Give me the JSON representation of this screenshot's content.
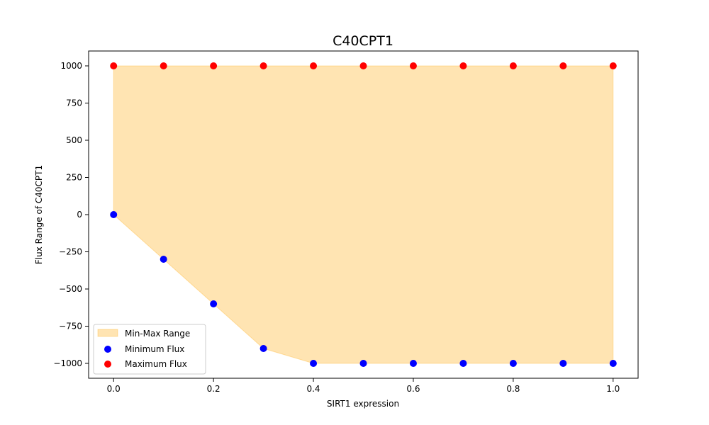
{
  "chart_data": {
    "type": "scatter",
    "title": "C40CPT1",
    "xlabel": "SIRT1 expression",
    "ylabel": "Flux Range of C40CPT1",
    "xlim": [
      -0.05,
      1.05
    ],
    "ylim": [
      -1100,
      1100
    ],
    "x": [
      0.0,
      0.1,
      0.2,
      0.3,
      0.4,
      0.5,
      0.6,
      0.7,
      0.8,
      0.9,
      1.0
    ],
    "series": [
      {
        "name": "Minimum Flux",
        "color": "#0000ff",
        "marker": "circle",
        "values": [
          0,
          -300,
          -600,
          -900,
          -1000,
          -1000,
          -1000,
          -1000,
          -1000,
          -1000,
          -1000
        ]
      },
      {
        "name": "Maximum Flux",
        "color": "#ff0000",
        "marker": "circle",
        "values": [
          1000,
          1000,
          1000,
          1000,
          1000,
          1000,
          1000,
          1000,
          1000,
          1000,
          1000
        ]
      }
    ],
    "fill_between": {
      "name": "Min-Max Range",
      "color": "#ffa500",
      "alpha": 0.3
    },
    "x_ticks": [
      {
        "value": 0.0,
        "label": "0.0"
      },
      {
        "value": 0.2,
        "label": "0.2"
      },
      {
        "value": 0.4,
        "label": "0.4"
      },
      {
        "value": 0.6,
        "label": "0.6"
      },
      {
        "value": 0.8,
        "label": "0.8"
      },
      {
        "value": 1.0,
        "label": "1.0"
      }
    ],
    "y_ticks": [
      {
        "value": 1000,
        "label": "1000"
      },
      {
        "value": 750,
        "label": "750"
      },
      {
        "value": 500,
        "label": "500"
      },
      {
        "value": 250,
        "label": "250"
      },
      {
        "value": 0,
        "label": "0"
      },
      {
        "value": -250,
        "label": "−250"
      },
      {
        "value": -500,
        "label": "−500"
      },
      {
        "value": -750,
        "label": "−750"
      },
      {
        "value": -1000,
        "label": "−1000"
      }
    ],
    "grid": false,
    "legend": {
      "position": "lower-left",
      "entries": [
        "Min-Max Range",
        "Minimum Flux",
        "Maximum Flux"
      ]
    }
  }
}
